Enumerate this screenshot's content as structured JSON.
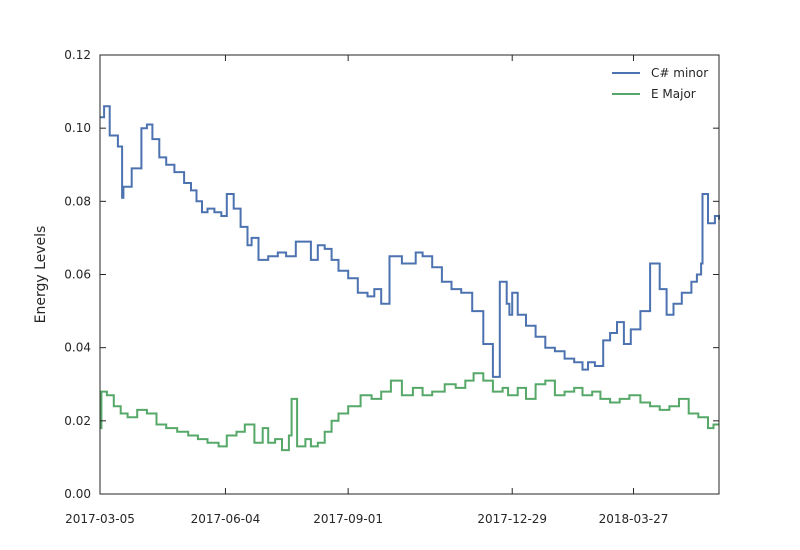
{
  "chart_data": {
    "type": "line",
    "title": "",
    "xlabel": "",
    "ylabel": "Energy Levels",
    "x_tick_labels": [
      "2017-03-05",
      "2017-06-04",
      "2017-09-01",
      "2017-12-29",
      "2018-03-27"
    ],
    "x_range": [
      "2017-03-05",
      "2018-05-28"
    ],
    "y_ticks": [
      "0.00",
      "0.02",
      "0.04",
      "0.06",
      "0.08",
      "0.10",
      "0.12"
    ],
    "ylim": [
      0,
      0.12
    ],
    "grid": false,
    "legend_position": "top-right",
    "series": [
      {
        "name": "C# minor",
        "color": "#4c72b0",
        "x": [
          "2017-03-05",
          "2017-03-08",
          "2017-03-12",
          "2017-03-18",
          "2017-03-21",
          "2017-03-22",
          "2017-03-28",
          "2017-04-04",
          "2017-04-08",
          "2017-04-12",
          "2017-04-17",
          "2017-04-22",
          "2017-04-28",
          "2017-05-05",
          "2017-05-10",
          "2017-05-14",
          "2017-05-18",
          "2017-05-22",
          "2017-05-27",
          "2017-06-01",
          "2017-06-05",
          "2017-06-10",
          "2017-06-15",
          "2017-06-20",
          "2017-06-23",
          "2017-06-28",
          "2017-07-05",
          "2017-07-12",
          "2017-07-18",
          "2017-07-25",
          "2017-07-30",
          "2017-08-05",
          "2017-08-10",
          "2017-08-15",
          "2017-08-20",
          "2017-08-25",
          "2017-09-01",
          "2017-09-08",
          "2017-09-15",
          "2017-09-20",
          "2017-09-25",
          "2017-10-01",
          "2017-10-10",
          "2017-10-20",
          "2017-10-25",
          "2017-11-01",
          "2017-11-08",
          "2017-11-15",
          "2017-11-22",
          "2017-11-30",
          "2017-12-08",
          "2017-12-15",
          "2017-12-20",
          "2017-12-25",
          "2017-12-27",
          "2017-12-29",
          "2018-01-02",
          "2018-01-08",
          "2018-01-15",
          "2018-01-22",
          "2018-01-29",
          "2018-02-05",
          "2018-02-12",
          "2018-02-18",
          "2018-02-22",
          "2018-02-27",
          "2018-03-05",
          "2018-03-10",
          "2018-03-15",
          "2018-03-20",
          "2018-03-25",
          "2018-04-01",
          "2018-04-08",
          "2018-04-15",
          "2018-04-20",
          "2018-04-25",
          "2018-05-01",
          "2018-05-08",
          "2018-05-12",
          "2018-05-15",
          "2018-05-16",
          "2018-05-20",
          "2018-05-25",
          "2018-05-28"
        ],
        "y": [
          0.103,
          0.106,
          0.098,
          0.095,
          0.081,
          0.084,
          0.089,
          0.1,
          0.101,
          0.097,
          0.092,
          0.09,
          0.088,
          0.085,
          0.083,
          0.08,
          0.077,
          0.078,
          0.077,
          0.076,
          0.082,
          0.078,
          0.073,
          0.068,
          0.07,
          0.064,
          0.065,
          0.066,
          0.065,
          0.069,
          0.069,
          0.064,
          0.068,
          0.067,
          0.064,
          0.061,
          0.059,
          0.055,
          0.054,
          0.056,
          0.052,
          0.065,
          0.063,
          0.066,
          0.065,
          0.062,
          0.058,
          0.056,
          0.055,
          0.05,
          0.041,
          0.032,
          0.058,
          0.052,
          0.049,
          0.055,
          0.049,
          0.046,
          0.043,
          0.04,
          0.039,
          0.037,
          0.036,
          0.034,
          0.036,
          0.035,
          0.042,
          0.044,
          0.047,
          0.041,
          0.045,
          0.05,
          0.063,
          0.056,
          0.049,
          0.052,
          0.055,
          0.058,
          0.06,
          0.063,
          0.082,
          0.074,
          0.076,
          0.075
        ]
      },
      {
        "name": "E Major",
        "color": "#55a868",
        "x": [
          "2017-03-05",
          "2017-03-06",
          "2017-03-10",
          "2017-03-15",
          "2017-03-20",
          "2017-03-25",
          "2017-04-01",
          "2017-04-08",
          "2017-04-15",
          "2017-04-22",
          "2017-04-30",
          "2017-05-08",
          "2017-05-15",
          "2017-05-22",
          "2017-05-30",
          "2017-06-05",
          "2017-06-12",
          "2017-06-18",
          "2017-06-25",
          "2017-07-01",
          "2017-07-05",
          "2017-07-10",
          "2017-07-15",
          "2017-07-20",
          "2017-07-22",
          "2017-07-26",
          "2017-08-01",
          "2017-08-05",
          "2017-08-10",
          "2017-08-15",
          "2017-08-20",
          "2017-08-25",
          "2017-09-01",
          "2017-09-10",
          "2017-09-18",
          "2017-09-25",
          "2017-10-02",
          "2017-10-10",
          "2017-10-18",
          "2017-10-25",
          "2017-11-01",
          "2017-11-10",
          "2017-11-18",
          "2017-11-25",
          "2017-12-01",
          "2017-12-08",
          "2017-12-15",
          "2017-12-22",
          "2017-12-26",
          "2018-01-02",
          "2018-01-08",
          "2018-01-15",
          "2018-01-22",
          "2018-01-29",
          "2018-02-05",
          "2018-02-12",
          "2018-02-18",
          "2018-02-25",
          "2018-03-03",
          "2018-03-10",
          "2018-03-17",
          "2018-03-24",
          "2018-04-01",
          "2018-04-08",
          "2018-04-15",
          "2018-04-22",
          "2018-04-29",
          "2018-05-06",
          "2018-05-13",
          "2018-05-20",
          "2018-05-24",
          "2018-05-28"
        ],
        "y": [
          0.018,
          0.028,
          0.027,
          0.024,
          0.022,
          0.021,
          0.023,
          0.022,
          0.019,
          0.018,
          0.017,
          0.016,
          0.015,
          0.014,
          0.013,
          0.016,
          0.017,
          0.019,
          0.014,
          0.018,
          0.014,
          0.015,
          0.012,
          0.016,
          0.026,
          0.013,
          0.015,
          0.013,
          0.014,
          0.017,
          0.02,
          0.022,
          0.024,
          0.027,
          0.026,
          0.028,
          0.031,
          0.027,
          0.029,
          0.027,
          0.028,
          0.03,
          0.029,
          0.031,
          0.033,
          0.031,
          0.028,
          0.029,
          0.027,
          0.029,
          0.026,
          0.03,
          0.031,
          0.027,
          0.028,
          0.029,
          0.027,
          0.028,
          0.026,
          0.025,
          0.026,
          0.027,
          0.025,
          0.024,
          0.023,
          0.024,
          0.026,
          0.022,
          0.021,
          0.018,
          0.019,
          0.019
        ]
      }
    ]
  }
}
